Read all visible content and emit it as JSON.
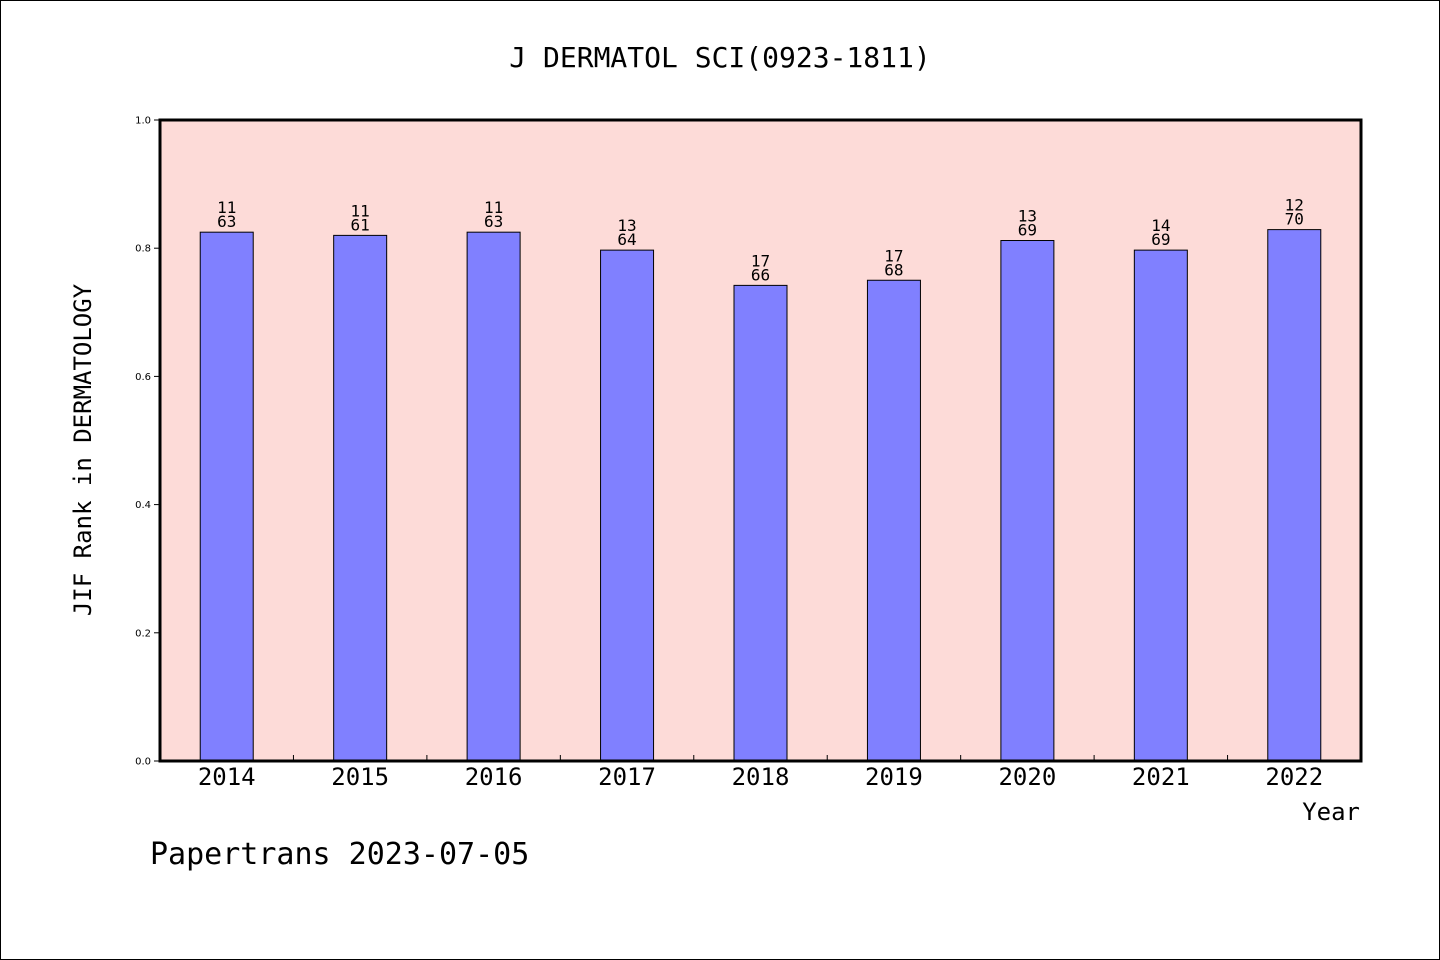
{
  "chart_data": {
    "type": "bar",
    "title": "J DERMATOL SCI(0923-1811)",
    "xlabel": "Year",
    "ylabel": "JIF Rank in DERMATOLOGY",
    "ylim": [
      0,
      1.0
    ],
    "yticks": [
      "0.0",
      "0.2",
      "0.4",
      "0.6",
      "0.8",
      "1.0"
    ],
    "categories": [
      "2014",
      "2015",
      "2016",
      "2017",
      "2018",
      "2019",
      "2020",
      "2021",
      "2022"
    ],
    "values": [
      0.825,
      0.82,
      0.825,
      0.797,
      0.742,
      0.75,
      0.812,
      0.797,
      0.829
    ],
    "rank": [
      "11",
      "11",
      "11",
      "13",
      "17",
      "17",
      "13",
      "14",
      "12"
    ],
    "total": [
      "63",
      "61",
      "63",
      "64",
      "66",
      "68",
      "69",
      "69",
      "70"
    ],
    "grid": false,
    "colors": {
      "plot_background": "#fddbd8",
      "bar_fill": "#8080ff",
      "bar_stroke": "#000000"
    }
  },
  "footer": "Papertrans 2023-07-05"
}
